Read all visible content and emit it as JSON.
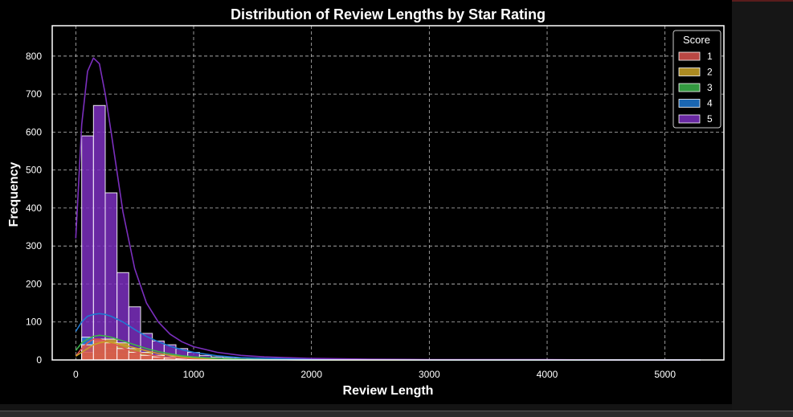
{
  "chart_data": {
    "type": "bar",
    "subtype": "stacked-histogram-with-kde",
    "title": "Distribution of Review Lengths by Star Rating",
    "xlabel": "Review Length",
    "ylabel": "Frequency",
    "xlim": [
      -200,
      5500
    ],
    "ylim": [
      0,
      880
    ],
    "xticks": [
      0,
      1000,
      2000,
      3000,
      4000,
      5000
    ],
    "yticks": [
      0,
      100,
      200,
      300,
      400,
      500,
      600,
      700,
      800
    ],
    "grid": true,
    "legend": {
      "title": "Score",
      "placement": "top-right"
    },
    "bin_width": 100,
    "bin_edges": [
      50,
      150,
      250,
      350,
      450,
      550,
      650,
      750,
      850,
      950,
      1050,
      1150,
      1250,
      1350,
      1450,
      1550,
      1650,
      1750,
      1850,
      1950,
      2050,
      2150,
      2250,
      2350,
      2450,
      2550
    ],
    "series": [
      {
        "name": "1",
        "color": "#d9544f",
        "values": [
          40,
          55,
          45,
          30,
          20,
          12,
          8,
          5,
          3,
          2,
          1,
          1,
          1,
          0,
          0,
          0,
          0,
          0,
          0,
          0,
          0,
          0,
          0,
          0,
          0
        ]
      },
      {
        "name": "2",
        "color": "#c9a227",
        "values": [
          20,
          50,
          55,
          45,
          30,
          20,
          12,
          8,
          5,
          3,
          2,
          1,
          1,
          1,
          0,
          0,
          0,
          0,
          0,
          0,
          0,
          0,
          0,
          0,
          0
        ]
      },
      {
        "name": "3",
        "color": "#3cb44b",
        "values": [
          10,
          15,
          18,
          15,
          12,
          8,
          5,
          3,
          2,
          1,
          1,
          1,
          0,
          0,
          0,
          0,
          0,
          0,
          0,
          0,
          0,
          0,
          0,
          0,
          0
        ]
      },
      {
        "name": "4",
        "color": "#1f78d1",
        "values": [
          60,
          45,
          30,
          25,
          20,
          15,
          12,
          8,
          5,
          4,
          3,
          2,
          2,
          1,
          1,
          1,
          1,
          0,
          0,
          0,
          0,
          0,
          0,
          0,
          0
        ]
      },
      {
        "name": "5",
        "color": "#7b2fbe",
        "values": [
          590,
          670,
          440,
          230,
          140,
          70,
          50,
          40,
          30,
          20,
          12,
          8,
          6,
          5,
          4,
          3,
          2,
          2,
          2,
          1,
          1,
          1,
          1,
          1,
          1
        ]
      }
    ],
    "kde": {
      "x": [
        0,
        50,
        100,
        150,
        200,
        250,
        300,
        400,
        500,
        600,
        700,
        800,
        900,
        1000,
        1200,
        1400,
        1600,
        2000,
        2500,
        3000,
        3500,
        4000,
        4500,
        5000,
        5300
      ],
      "1": [
        10,
        30,
        45,
        55,
        55,
        50,
        45,
        32,
        22,
        15,
        10,
        7,
        5,
        3,
        2,
        1,
        1,
        0,
        0,
        0,
        0,
        0,
        0,
        0,
        0
      ],
      "2": [
        10,
        20,
        30,
        40,
        45,
        48,
        46,
        40,
        32,
        24,
        17,
        12,
        8,
        5,
        3,
        2,
        1,
        0,
        0,
        0,
        0,
        0,
        0,
        0,
        0
      ],
      "3": [
        25,
        45,
        55,
        62,
        65,
        63,
        60,
        50,
        40,
        30,
        22,
        16,
        11,
        8,
        4,
        2,
        1,
        0,
        0,
        0,
        0,
        0,
        0,
        0,
        0
      ],
      "4": [
        75,
        100,
        115,
        120,
        122,
        120,
        115,
        100,
        80,
        62,
        48,
        36,
        27,
        20,
        11,
        6,
        4,
        2,
        1,
        0,
        0,
        0,
        0,
        0,
        0
      ],
      "5": [
        320,
        620,
        760,
        795,
        780,
        700,
        600,
        390,
        240,
        150,
        100,
        68,
        48,
        35,
        20,
        12,
        8,
        4,
        2,
        1,
        1,
        1,
        0,
        0,
        0
      ]
    }
  }
}
